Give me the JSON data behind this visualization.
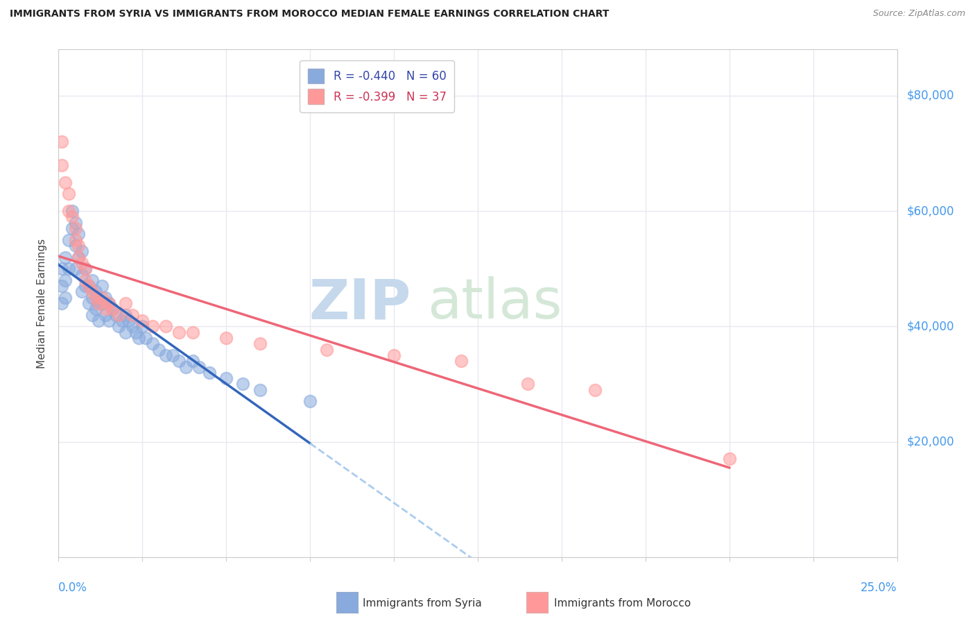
{
  "title": "IMMIGRANTS FROM SYRIA VS IMMIGRANTS FROM MOROCCO MEDIAN FEMALE EARNINGS CORRELATION CHART",
  "source": "Source: ZipAtlas.com",
  "ylabel": "Median Female Earnings",
  "xlim": [
    0.0,
    0.25
  ],
  "ylim": [
    0,
    88000
  ],
  "yticks": [
    0,
    20000,
    40000,
    60000,
    80000
  ],
  "ytick_labels": [
    "",
    "$20,000",
    "$40,000",
    "$60,000",
    "$80,000"
  ],
  "xtick_count": 11,
  "syria_R": "-0.440",
  "syria_N": 60,
  "morocco_R": "-0.399",
  "morocco_N": 37,
  "syria_dot_color": "#88AADD",
  "morocco_dot_color": "#FF9999",
  "syria_line_color": "#3366BB",
  "morocco_line_color": "#EE6677",
  "dash_color": "#AACCEE",
  "watermark_zip": "ZIP",
  "watermark_atlas": "atlas",
  "watermark_color": "#C8DFF0",
  "axis_label_color": "#4499EE",
  "title_color": "#222222",
  "source_color": "#888888",
  "grid_color": "#E8E8F0",
  "syria_x": [
    0.001,
    0.001,
    0.001,
    0.002,
    0.002,
    0.002,
    0.003,
    0.003,
    0.004,
    0.004,
    0.005,
    0.005,
    0.005,
    0.006,
    0.006,
    0.007,
    0.007,
    0.007,
    0.008,
    0.008,
    0.009,
    0.009,
    0.01,
    0.01,
    0.01,
    0.011,
    0.011,
    0.012,
    0.012,
    0.013,
    0.013,
    0.014,
    0.014,
    0.015,
    0.015,
    0.016,
    0.017,
    0.018,
    0.019,
    0.02,
    0.02,
    0.021,
    0.022,
    0.023,
    0.024,
    0.025,
    0.026,
    0.028,
    0.03,
    0.032,
    0.034,
    0.036,
    0.038,
    0.04,
    0.042,
    0.045,
    0.05,
    0.055,
    0.06,
    0.075
  ],
  "syria_y": [
    50000,
    47000,
    44000,
    52000,
    48000,
    45000,
    55000,
    50000,
    60000,
    57000,
    58000,
    54000,
    50000,
    56000,
    52000,
    53000,
    49000,
    46000,
    50000,
    47000,
    47000,
    44000,
    48000,
    45000,
    42000,
    46000,
    43000,
    44000,
    41000,
    47000,
    44000,
    45000,
    42000,
    44000,
    41000,
    43000,
    42000,
    40000,
    41000,
    42000,
    39000,
    41000,
    40000,
    39000,
    38000,
    40000,
    38000,
    37000,
    36000,
    35000,
    35000,
    34000,
    33000,
    34000,
    33000,
    32000,
    31000,
    30000,
    29000,
    27000
  ],
  "morocco_x": [
    0.001,
    0.001,
    0.002,
    0.003,
    0.003,
    0.004,
    0.005,
    0.005,
    0.006,
    0.006,
    0.007,
    0.008,
    0.008,
    0.009,
    0.01,
    0.011,
    0.012,
    0.013,
    0.014,
    0.015,
    0.016,
    0.018,
    0.02,
    0.022,
    0.025,
    0.028,
    0.032,
    0.036,
    0.04,
    0.05,
    0.06,
    0.08,
    0.1,
    0.12,
    0.14,
    0.16,
    0.2
  ],
  "morocco_y": [
    72000,
    68000,
    65000,
    63000,
    60000,
    59000,
    57000,
    55000,
    54000,
    52000,
    51000,
    50000,
    48000,
    47000,
    46000,
    45000,
    44000,
    45000,
    43000,
    44000,
    43000,
    42000,
    44000,
    42000,
    41000,
    40000,
    40000,
    39000,
    39000,
    38000,
    37000,
    36000,
    35000,
    34000,
    30000,
    29000,
    17000
  ]
}
